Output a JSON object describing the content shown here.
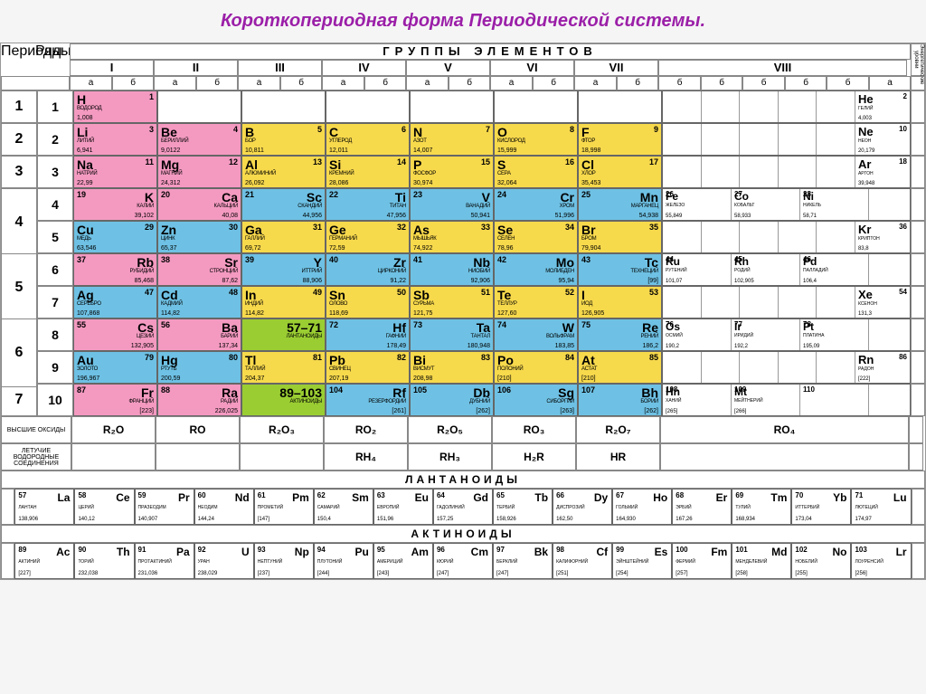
{
  "title": "Короткопериодная форма Периодической системы.",
  "labels": {
    "periods": "Периоды",
    "rows": "Ряды",
    "groups_title": "ГРУППЫ ЭЛЕМЕНТОВ",
    "energy": "Энергетические уровни",
    "a": "а",
    "b": "б",
    "oxides": "ВЫСШИЕ ОКСИДЫ",
    "hydrides": "ЛЕТУЧИЕ ВОДОРОДНЫЕ СОЕДИНЕНИЯ",
    "lanthanides": "ЛАНТАНОИДЫ",
    "actinides": "АКТИНОИДЫ"
  },
  "roman": [
    "I",
    "II",
    "III",
    "IV",
    "V",
    "VI",
    "VII",
    "VIII"
  ],
  "colors": {
    "pink": "#f49ac1",
    "yellow": "#f7d94c",
    "blue": "#6ec1e4",
    "green": "#9acd32",
    "border": "#666666",
    "title": "#9b1fa8"
  },
  "oxides": [
    "R₂O",
    "RO",
    "R₂O₃",
    "RO₂",
    "R₂O₅",
    "RO₃",
    "R₂O₇",
    "RO₄"
  ],
  "hydrides": [
    "",
    "",
    "",
    "RH₄",
    "RH₃",
    "H₂R",
    "HR",
    ""
  ],
  "rows": [
    {
      "period": "1",
      "row": "1",
      "cells": [
        {
          "c": "pink",
          "sym": "H",
          "num": "1",
          "name": "ВОДОРОД",
          "mass": "1,008",
          "side": "left"
        },
        null,
        null,
        null,
        null,
        null,
        null,
        {
          "type": "g8",
          "last": {
            "c": "pink",
            "sym": "He",
            "num": "2",
            "name": "ГЕЛИЙ",
            "mass": "4,003"
          }
        }
      ]
    },
    {
      "period": "2",
      "row": "2",
      "cells": [
        {
          "c": "pink",
          "sym": "Li",
          "num": "3",
          "name": "ЛИТИЙ",
          "mass": "6,941"
        },
        {
          "c": "pink",
          "sym": "Be",
          "num": "4",
          "name": "БЕРИЛЛИЙ",
          "mass": "9,0122"
        },
        {
          "c": "yellow",
          "sym": "B",
          "num": "5",
          "name": "БОР",
          "mass": "10,811"
        },
        {
          "c": "yellow",
          "sym": "C",
          "num": "6",
          "name": "УГЛЕРОД",
          "mass": "12,011"
        },
        {
          "c": "yellow",
          "sym": "N",
          "num": "7",
          "name": "АЗОТ",
          "mass": "14,007"
        },
        {
          "c": "yellow",
          "sym": "O",
          "num": "8",
          "name": "КИСЛОРОД",
          "mass": "15,999"
        },
        {
          "c": "yellow",
          "sym": "F",
          "num": "9",
          "name": "ФТОР",
          "mass": "18,998"
        },
        {
          "type": "g8",
          "last": {
            "c": "yellow",
            "sym": "Ne",
            "num": "10",
            "name": "НЕОН",
            "mass": "20,179"
          }
        }
      ]
    },
    {
      "period": "3",
      "row": "3",
      "cells": [
        {
          "c": "pink",
          "sym": "Na",
          "num": "11",
          "name": "НАТРИЙ",
          "mass": "22,99"
        },
        {
          "c": "pink",
          "sym": "Mg",
          "num": "12",
          "name": "МАГНИЙ",
          "mass": "24,312"
        },
        {
          "c": "yellow",
          "sym": "Al",
          "num": "13",
          "name": "АЛЮМИНИЙ",
          "mass": "26,092"
        },
        {
          "c": "yellow",
          "sym": "Si",
          "num": "14",
          "name": "КРЕМНИЙ",
          "mass": "28,086"
        },
        {
          "c": "yellow",
          "sym": "P",
          "num": "15",
          "name": "ФОСФОР",
          "mass": "30,974"
        },
        {
          "c": "yellow",
          "sym": "S",
          "num": "16",
          "name": "СЕРА",
          "mass": "32,064"
        },
        {
          "c": "yellow",
          "sym": "Cl",
          "num": "17",
          "name": "ХЛОР",
          "mass": "35,453"
        },
        {
          "type": "g8",
          "last": {
            "c": "yellow",
            "sym": "Ar",
            "num": "18",
            "name": "АРГОН",
            "mass": "39,948"
          }
        }
      ]
    },
    {
      "period": "4",
      "row": "4",
      "span": 2,
      "cells": [
        {
          "c": "pink",
          "sym": "K",
          "num": "19",
          "name": "КАЛИЙ",
          "mass": "39,102",
          "side": "right"
        },
        {
          "c": "pink",
          "sym": "Ca",
          "num": "20",
          "name": "КАЛЬЦИЙ",
          "mass": "40,08",
          "side": "right"
        },
        {
          "c": "blue",
          "sym": "Sc",
          "num": "21",
          "name": "СКАНДИЙ",
          "mass": "44,956",
          "side": "right"
        },
        {
          "c": "blue",
          "sym": "Ti",
          "num": "22",
          "name": "ТИТАН",
          "mass": "47,956",
          "side": "right"
        },
        {
          "c": "blue",
          "sym": "V",
          "num": "23",
          "name": "ВАНАДИЙ",
          "mass": "50,941",
          "side": "right"
        },
        {
          "c": "blue",
          "sym": "Cr",
          "num": "24",
          "name": "ХРОМ",
          "mass": "51,996",
          "side": "right"
        },
        {
          "c": "blue",
          "sym": "Mn",
          "num": "25",
          "name": "МАРГАНЕЦ",
          "mass": "54,938",
          "side": "right"
        },
        {
          "type": "g8",
          "triple": [
            {
              "c": "blue",
              "sym": "Fe",
              "num": "26",
              "name": "ЖЕЛЕЗО",
              "mass": "55,849"
            },
            {
              "c": "blue",
              "sym": "Co",
              "num": "27",
              "name": "КОБАЛЬТ",
              "mass": "58,933"
            },
            {
              "c": "blue",
              "sym": "Ni",
              "num": "28",
              "name": "НИКЕЛЬ",
              "mass": "58,71"
            }
          ]
        }
      ]
    },
    {
      "period": "",
      "row": "5",
      "cells": [
        {
          "c": "blue",
          "sym": "Cu",
          "num": "29",
          "name": "МЕДЬ",
          "mass": "63,546"
        },
        {
          "c": "blue",
          "sym": "Zn",
          "num": "30",
          "name": "ЦИНК",
          "mass": "65,37"
        },
        {
          "c": "yellow",
          "sym": "Ga",
          "num": "31",
          "name": "ГАЛЛИЙ",
          "mass": "69,72"
        },
        {
          "c": "yellow",
          "sym": "Ge",
          "num": "32",
          "name": "ГЕРМАНИЙ",
          "mass": "72,59"
        },
        {
          "c": "yellow",
          "sym": "As",
          "num": "33",
          "name": "МЫШЬЯК",
          "mass": "74,922"
        },
        {
          "c": "yellow",
          "sym": "Se",
          "num": "34",
          "name": "СЕЛЕН",
          "mass": "78,96"
        },
        {
          "c": "yellow",
          "sym": "Br",
          "num": "35",
          "name": "БРОМ",
          "mass": "79,904"
        },
        {
          "type": "g8",
          "last": {
            "c": "yellow",
            "sym": "Kr",
            "num": "36",
            "name": "КРИПТОН",
            "mass": "83,8"
          }
        }
      ]
    },
    {
      "period": "5",
      "row": "6",
      "span": 2,
      "cells": [
        {
          "c": "pink",
          "sym": "Rb",
          "num": "37",
          "name": "РУБИДИЙ",
          "mass": "85,468",
          "side": "right"
        },
        {
          "c": "pink",
          "sym": "Sr",
          "num": "38",
          "name": "СТРОНЦИЙ",
          "mass": "87,62",
          "side": "right"
        },
        {
          "c": "blue",
          "sym": "Y",
          "num": "39",
          "name": "ИТТРИЙ",
          "mass": "88,906",
          "side": "right"
        },
        {
          "c": "blue",
          "sym": "Zr",
          "num": "40",
          "name": "ЦИРКОНИЙ",
          "mass": "91,22",
          "side": "right"
        },
        {
          "c": "blue",
          "sym": "Nb",
          "num": "41",
          "name": "НИОБИЙ",
          "mass": "92,906",
          "side": "right"
        },
        {
          "c": "blue",
          "sym": "Mo",
          "num": "42",
          "name": "МОЛИБДЕН",
          "mass": "95,94",
          "side": "right"
        },
        {
          "c": "blue",
          "sym": "Tc",
          "num": "43",
          "name": "ТЕХНЕЦИЙ",
          "mass": "[99]",
          "side": "right"
        },
        {
          "type": "g8",
          "triple": [
            {
              "c": "blue",
              "sym": "Ru",
              "num": "44",
              "name": "РУТЕНИЙ",
              "mass": "101,07"
            },
            {
              "c": "blue",
              "sym": "Rh",
              "num": "45",
              "name": "РОДИЙ",
              "mass": "102,905"
            },
            {
              "c": "blue",
              "sym": "Pd",
              "num": "46",
              "name": "ПАЛЛАДИЙ",
              "mass": "106,4"
            }
          ]
        }
      ]
    },
    {
      "period": "",
      "row": "7",
      "cells": [
        {
          "c": "blue",
          "sym": "Ag",
          "num": "47",
          "name": "СЕРЕБРО",
          "mass": "107,868"
        },
        {
          "c": "blue",
          "sym": "Cd",
          "num": "48",
          "name": "КАДМИЙ",
          "mass": "114,82"
        },
        {
          "c": "yellow",
          "sym": "In",
          "num": "49",
          "name": "ИНДИЙ",
          "mass": "114,82"
        },
        {
          "c": "yellow",
          "sym": "Sn",
          "num": "50",
          "name": "ОЛОВО",
          "mass": "118,69"
        },
        {
          "c": "yellow",
          "sym": "Sb",
          "num": "51",
          "name": "СУРЬМА",
          "mass": "121,75"
        },
        {
          "c": "yellow",
          "sym": "Te",
          "num": "52",
          "name": "ТЕЛЛУР",
          "mass": "127,60"
        },
        {
          "c": "yellow",
          "sym": "I",
          "num": "53",
          "name": "ИОД",
          "mass": "126,905"
        },
        {
          "type": "g8",
          "last": {
            "c": "yellow",
            "sym": "Xe",
            "num": "54",
            "name": "КСЕНОН",
            "mass": "131,3"
          }
        }
      ]
    },
    {
      "period": "6",
      "row": "8",
      "span": 2,
      "cells": [
        {
          "c": "pink",
          "sym": "Cs",
          "num": "55",
          "name": "ЦЕЗИЙ",
          "mass": "132,905",
          "side": "right"
        },
        {
          "c": "pink",
          "sym": "Ba",
          "num": "56",
          "name": "БАРИЙ",
          "mass": "137,34",
          "side": "right"
        },
        {
          "c": "green",
          "sym": "57–71",
          "num": "",
          "name": "ЛАНТАНОИДЫ",
          "mass": "",
          "side": "right"
        },
        {
          "c": "blue",
          "sym": "Hf",
          "num": "72",
          "name": "ГАФНИЙ",
          "mass": "178,49",
          "side": "right"
        },
        {
          "c": "blue",
          "sym": "Ta",
          "num": "73",
          "name": "ТАНТАЛ",
          "mass": "180,948",
          "side": "right"
        },
        {
          "c": "blue",
          "sym": "W",
          "num": "74",
          "name": "ВОЛЬФРАМ",
          "mass": "183,85",
          "side": "right"
        },
        {
          "c": "blue",
          "sym": "Re",
          "num": "75",
          "name": "РЕНИЙ",
          "mass": "186,2",
          "side": "right"
        },
        {
          "type": "g8",
          "triple": [
            {
              "c": "blue",
              "sym": "Os",
              "num": "76",
              "name": "ОСМИЙ",
              "mass": "190,2"
            },
            {
              "c": "blue",
              "sym": "Ir",
              "num": "77",
              "name": "ИРИДИЙ",
              "mass": "192,2"
            },
            {
              "c": "blue",
              "sym": "Pt",
              "num": "78",
              "name": "ПЛАТИНА",
              "mass": "195,09"
            }
          ]
        }
      ]
    },
    {
      "period": "",
      "row": "9",
      "cells": [
        {
          "c": "blue",
          "sym": "Au",
          "num": "79",
          "name": "ЗОЛОТО",
          "mass": "196,967"
        },
        {
          "c": "blue",
          "sym": "Hg",
          "num": "80",
          "name": "РТУТЬ",
          "mass": "200,59"
        },
        {
          "c": "yellow",
          "sym": "Tl",
          "num": "81",
          "name": "ТАЛЛИЙ",
          "mass": "204,37"
        },
        {
          "c": "yellow",
          "sym": "Pb",
          "num": "82",
          "name": "СВИНЕЦ",
          "mass": "207,19"
        },
        {
          "c": "yellow",
          "sym": "Bi",
          "num": "83",
          "name": "ВИСМУТ",
          "mass": "208,98"
        },
        {
          "c": "yellow",
          "sym": "Po",
          "num": "84",
          "name": "ПОЛОНИЙ",
          "mass": "[210]"
        },
        {
          "c": "yellow",
          "sym": "At",
          "num": "85",
          "name": "АСТАТ",
          "mass": "[210]"
        },
        {
          "type": "g8",
          "last": {
            "c": "yellow",
            "sym": "Rn",
            "num": "86",
            "name": "РАДОН",
            "mass": "[222]"
          }
        }
      ]
    },
    {
      "period": "7",
      "row": "10",
      "cells": [
        {
          "c": "pink",
          "sym": "Fr",
          "num": "87",
          "name": "ФРАНЦИЙ",
          "mass": "[223]",
          "side": "right"
        },
        {
          "c": "pink",
          "sym": "Ra",
          "num": "88",
          "name": "РАДИЙ",
          "mass": "226,025",
          "side": "right"
        },
        {
          "c": "green",
          "sym": "89–103",
          "num": "",
          "name": "АКТИНОИДЫ",
          "mass": "",
          "side": "right"
        },
        {
          "c": "blue",
          "sym": "Rf",
          "num": "104",
          "name": "РЕЗЕРФОРДИЙ",
          "mass": "[261]",
          "side": "right"
        },
        {
          "c": "blue",
          "sym": "Db",
          "num": "105",
          "name": "ДУБНИЙ",
          "mass": "[262]",
          "side": "right"
        },
        {
          "c": "blue",
          "sym": "Sg",
          "num": "106",
          "name": "СИБОРГИЙ",
          "mass": "[263]",
          "side": "right"
        },
        {
          "c": "blue",
          "sym": "Bh",
          "num": "107",
          "name": "БОРИЙ",
          "mass": "[262]",
          "side": "right"
        },
        {
          "type": "g8",
          "triple": [
            {
              "c": "blue",
              "sym": "Hn",
              "num": "108",
              "name": "ХАНИЙ",
              "mass": "[265]"
            },
            {
              "c": "blue",
              "sym": "Mt",
              "num": "109",
              "name": "МЕЙТНЕРИЙ",
              "mass": "[266]"
            },
            {
              "c": "plain",
              "sym": "",
              "num": "110",
              "name": "",
              "mass": ""
            }
          ]
        }
      ]
    }
  ],
  "lanthanides": [
    {
      "num": "57",
      "sym": "La",
      "name": "ЛАНТАН",
      "mass": "138,906"
    },
    {
      "num": "58",
      "sym": "Ce",
      "name": "ЦЕРИЙ",
      "mass": "140,12"
    },
    {
      "num": "59",
      "sym": "Pr",
      "name": "ПРАЗЕОДИМ",
      "mass": "140,907"
    },
    {
      "num": "60",
      "sym": "Nd",
      "name": "НЕОДИМ",
      "mass": "144,24"
    },
    {
      "num": "61",
      "sym": "Pm",
      "name": "ПРОМЕТИЙ",
      "mass": "[147]"
    },
    {
      "num": "62",
      "sym": "Sm",
      "name": "САМАРИЙ",
      "mass": "150,4"
    },
    {
      "num": "63",
      "sym": "Eu",
      "name": "ЕВРОПИЙ",
      "mass": "151,96"
    },
    {
      "num": "64",
      "sym": "Gd",
      "name": "ГАДОЛИНИЙ",
      "mass": "157,25"
    },
    {
      "num": "65",
      "sym": "Tb",
      "name": "ТЕРБИЙ",
      "mass": "158,926"
    },
    {
      "num": "66",
      "sym": "Dy",
      "name": "ДИСПРОЗИЙ",
      "mass": "162,50"
    },
    {
      "num": "67",
      "sym": "Ho",
      "name": "ГОЛЬМИЙ",
      "mass": "164,930"
    },
    {
      "num": "68",
      "sym": "Er",
      "name": "ЭРБИЙ",
      "mass": "167,26"
    },
    {
      "num": "69",
      "sym": "Tm",
      "name": "ТУЛИЙ",
      "mass": "168,934"
    },
    {
      "num": "70",
      "sym": "Yb",
      "name": "ИТТЕРБИЙ",
      "mass": "173,04"
    },
    {
      "num": "71",
      "sym": "Lu",
      "name": "ЛЮТЕЦИЙ",
      "mass": "174,97"
    }
  ],
  "actinides": [
    {
      "num": "89",
      "sym": "Ac",
      "name": "АКТИНИЙ",
      "mass": "[227]"
    },
    {
      "num": "90",
      "sym": "Th",
      "name": "ТОРИЙ",
      "mass": "232,038"
    },
    {
      "num": "91",
      "sym": "Pa",
      "name": "ПРОТАКТИНИЙ",
      "mass": "231,036"
    },
    {
      "num": "92",
      "sym": "U",
      "name": "УРАН",
      "mass": "238,029"
    },
    {
      "num": "93",
      "sym": "Np",
      "name": "НЕПТУНИЙ",
      "mass": "[237]"
    },
    {
      "num": "94",
      "sym": "Pu",
      "name": "ПЛУТОНИЙ",
      "mass": "[244]"
    },
    {
      "num": "95",
      "sym": "Am",
      "name": "АМЕРИЦИЙ",
      "mass": "[243]"
    },
    {
      "num": "96",
      "sym": "Cm",
      "name": "КЮРИЙ",
      "mass": "[247]"
    },
    {
      "num": "97",
      "sym": "Bk",
      "name": "БЕРКЛИЙ",
      "mass": "[247]"
    },
    {
      "num": "98",
      "sym": "Cf",
      "name": "КАЛИФОРНИЙ",
      "mass": "[251]"
    },
    {
      "num": "99",
      "sym": "Es",
      "name": "ЭЙНШТЕЙНИЙ",
      "mass": "[254]"
    },
    {
      "num": "100",
      "sym": "Fm",
      "name": "ФЕРМИЙ",
      "mass": "[257]"
    },
    {
      "num": "101",
      "sym": "Md",
      "name": "МЕНДЕЛЕВИЙ",
      "mass": "[258]"
    },
    {
      "num": "102",
      "sym": "No",
      "name": "НОБЕЛИЙ",
      "mass": "[255]"
    },
    {
      "num": "103",
      "sym": "Lr",
      "name": "ЛОУРЕНСИЙ",
      "mass": "[256]"
    }
  ]
}
